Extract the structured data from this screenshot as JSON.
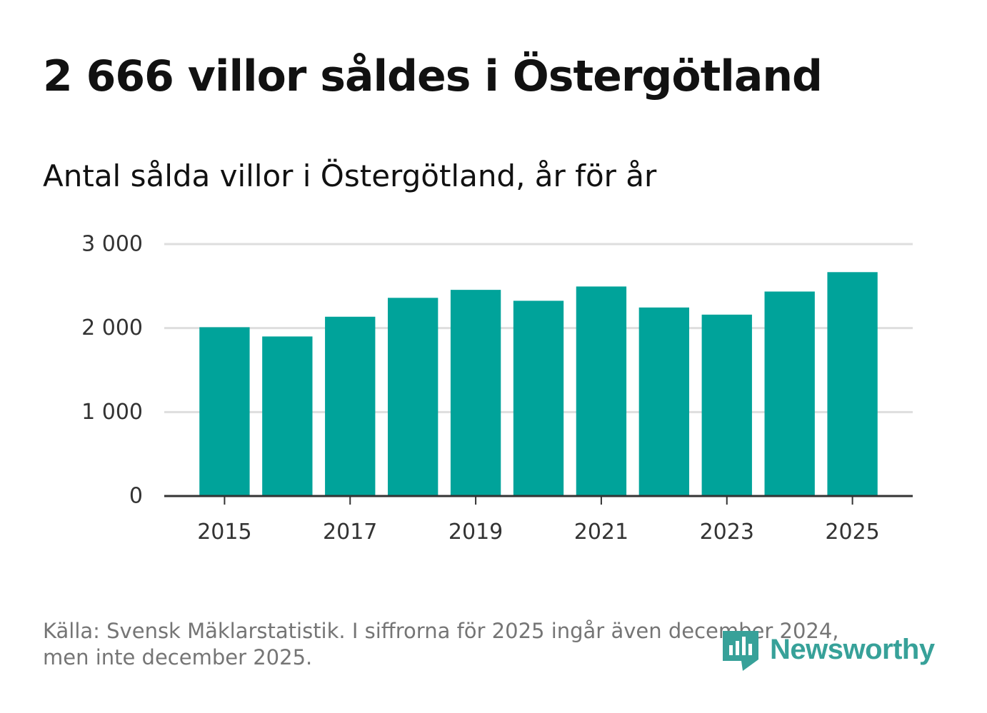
{
  "header": {
    "title": "2 666 villor såldes i Östergötland",
    "subtitle": "Antal sålda villor i Östergötland, år för år"
  },
  "chart_data": {
    "type": "bar",
    "title": "2 666 villor såldes i Östergötland",
    "subtitle": "Antal sålda villor i Östergötland, år för år",
    "categories": [
      "2015",
      "2016",
      "2017",
      "2018",
      "2019",
      "2020",
      "2021",
      "2022",
      "2023",
      "2024",
      "2025"
    ],
    "values": [
      2010,
      1900,
      2135,
      2360,
      2455,
      2325,
      2495,
      2245,
      2160,
      2435,
      2666
    ],
    "x_tick_labels": [
      "2015",
      "2017",
      "2019",
      "2021",
      "2023",
      "2025"
    ],
    "y_ticks": [
      0,
      1000,
      2000,
      3000
    ],
    "y_tick_labels": [
      "0",
      "1 000",
      "2 000",
      "3 000"
    ],
    "ylim": [
      0,
      3000
    ],
    "xlabel": "",
    "ylabel": "",
    "grid": true,
    "bar_color": "#00a39a"
  },
  "footer": {
    "source_line1": "Källa: Svensk Mäklarstatistik. I siffrorna för 2025 ingår även december 2024,",
    "source_line2": "men inte december 2025.",
    "logo_text": "Newsworthy",
    "logo_color": "#37a199"
  }
}
